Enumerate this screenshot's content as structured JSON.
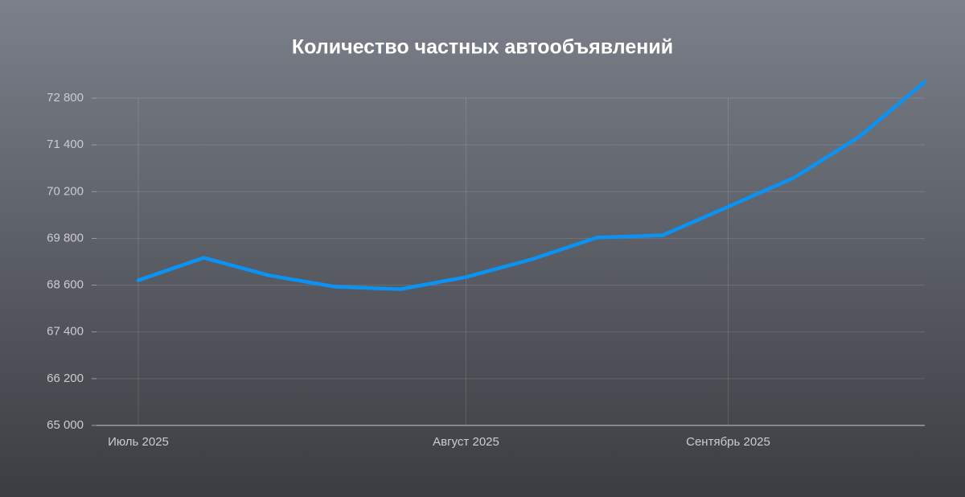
{
  "chart_data": {
    "type": "line",
    "title": "Количество частных автообъявлений",
    "categories": [
      "Июль 2025",
      null,
      null,
      null,
      null,
      "Август 2025",
      null,
      null,
      null,
      "Сентябрь 2025",
      null,
      null,
      null
    ],
    "series": [
      {
        "name": "Количество",
        "color": "#0a93f5",
        "values": [
          68724,
          69303,
          68848,
          68559,
          68497,
          68807,
          69262,
          69807,
          69827,
          70071,
          70552,
          71641,
          73283
        ]
      }
    ],
    "ylim": [
      65000,
      73283
    ],
    "yticks": [
      {
        "value": 65000,
        "label": "65 000"
      },
      {
        "value": 66200,
        "label": "66 200"
      },
      {
        "value": 67400,
        "label": "67 400"
      },
      {
        "value": 68600,
        "label": "68 600"
      },
      {
        "value": 69800,
        "label": "69 800"
      },
      {
        "value": 70200,
        "label": "70 200"
      },
      {
        "value": 71400,
        "label": "71 400"
      },
      {
        "value": 72800,
        "label": "72 800"
      }
    ],
    "grid": true
  }
}
